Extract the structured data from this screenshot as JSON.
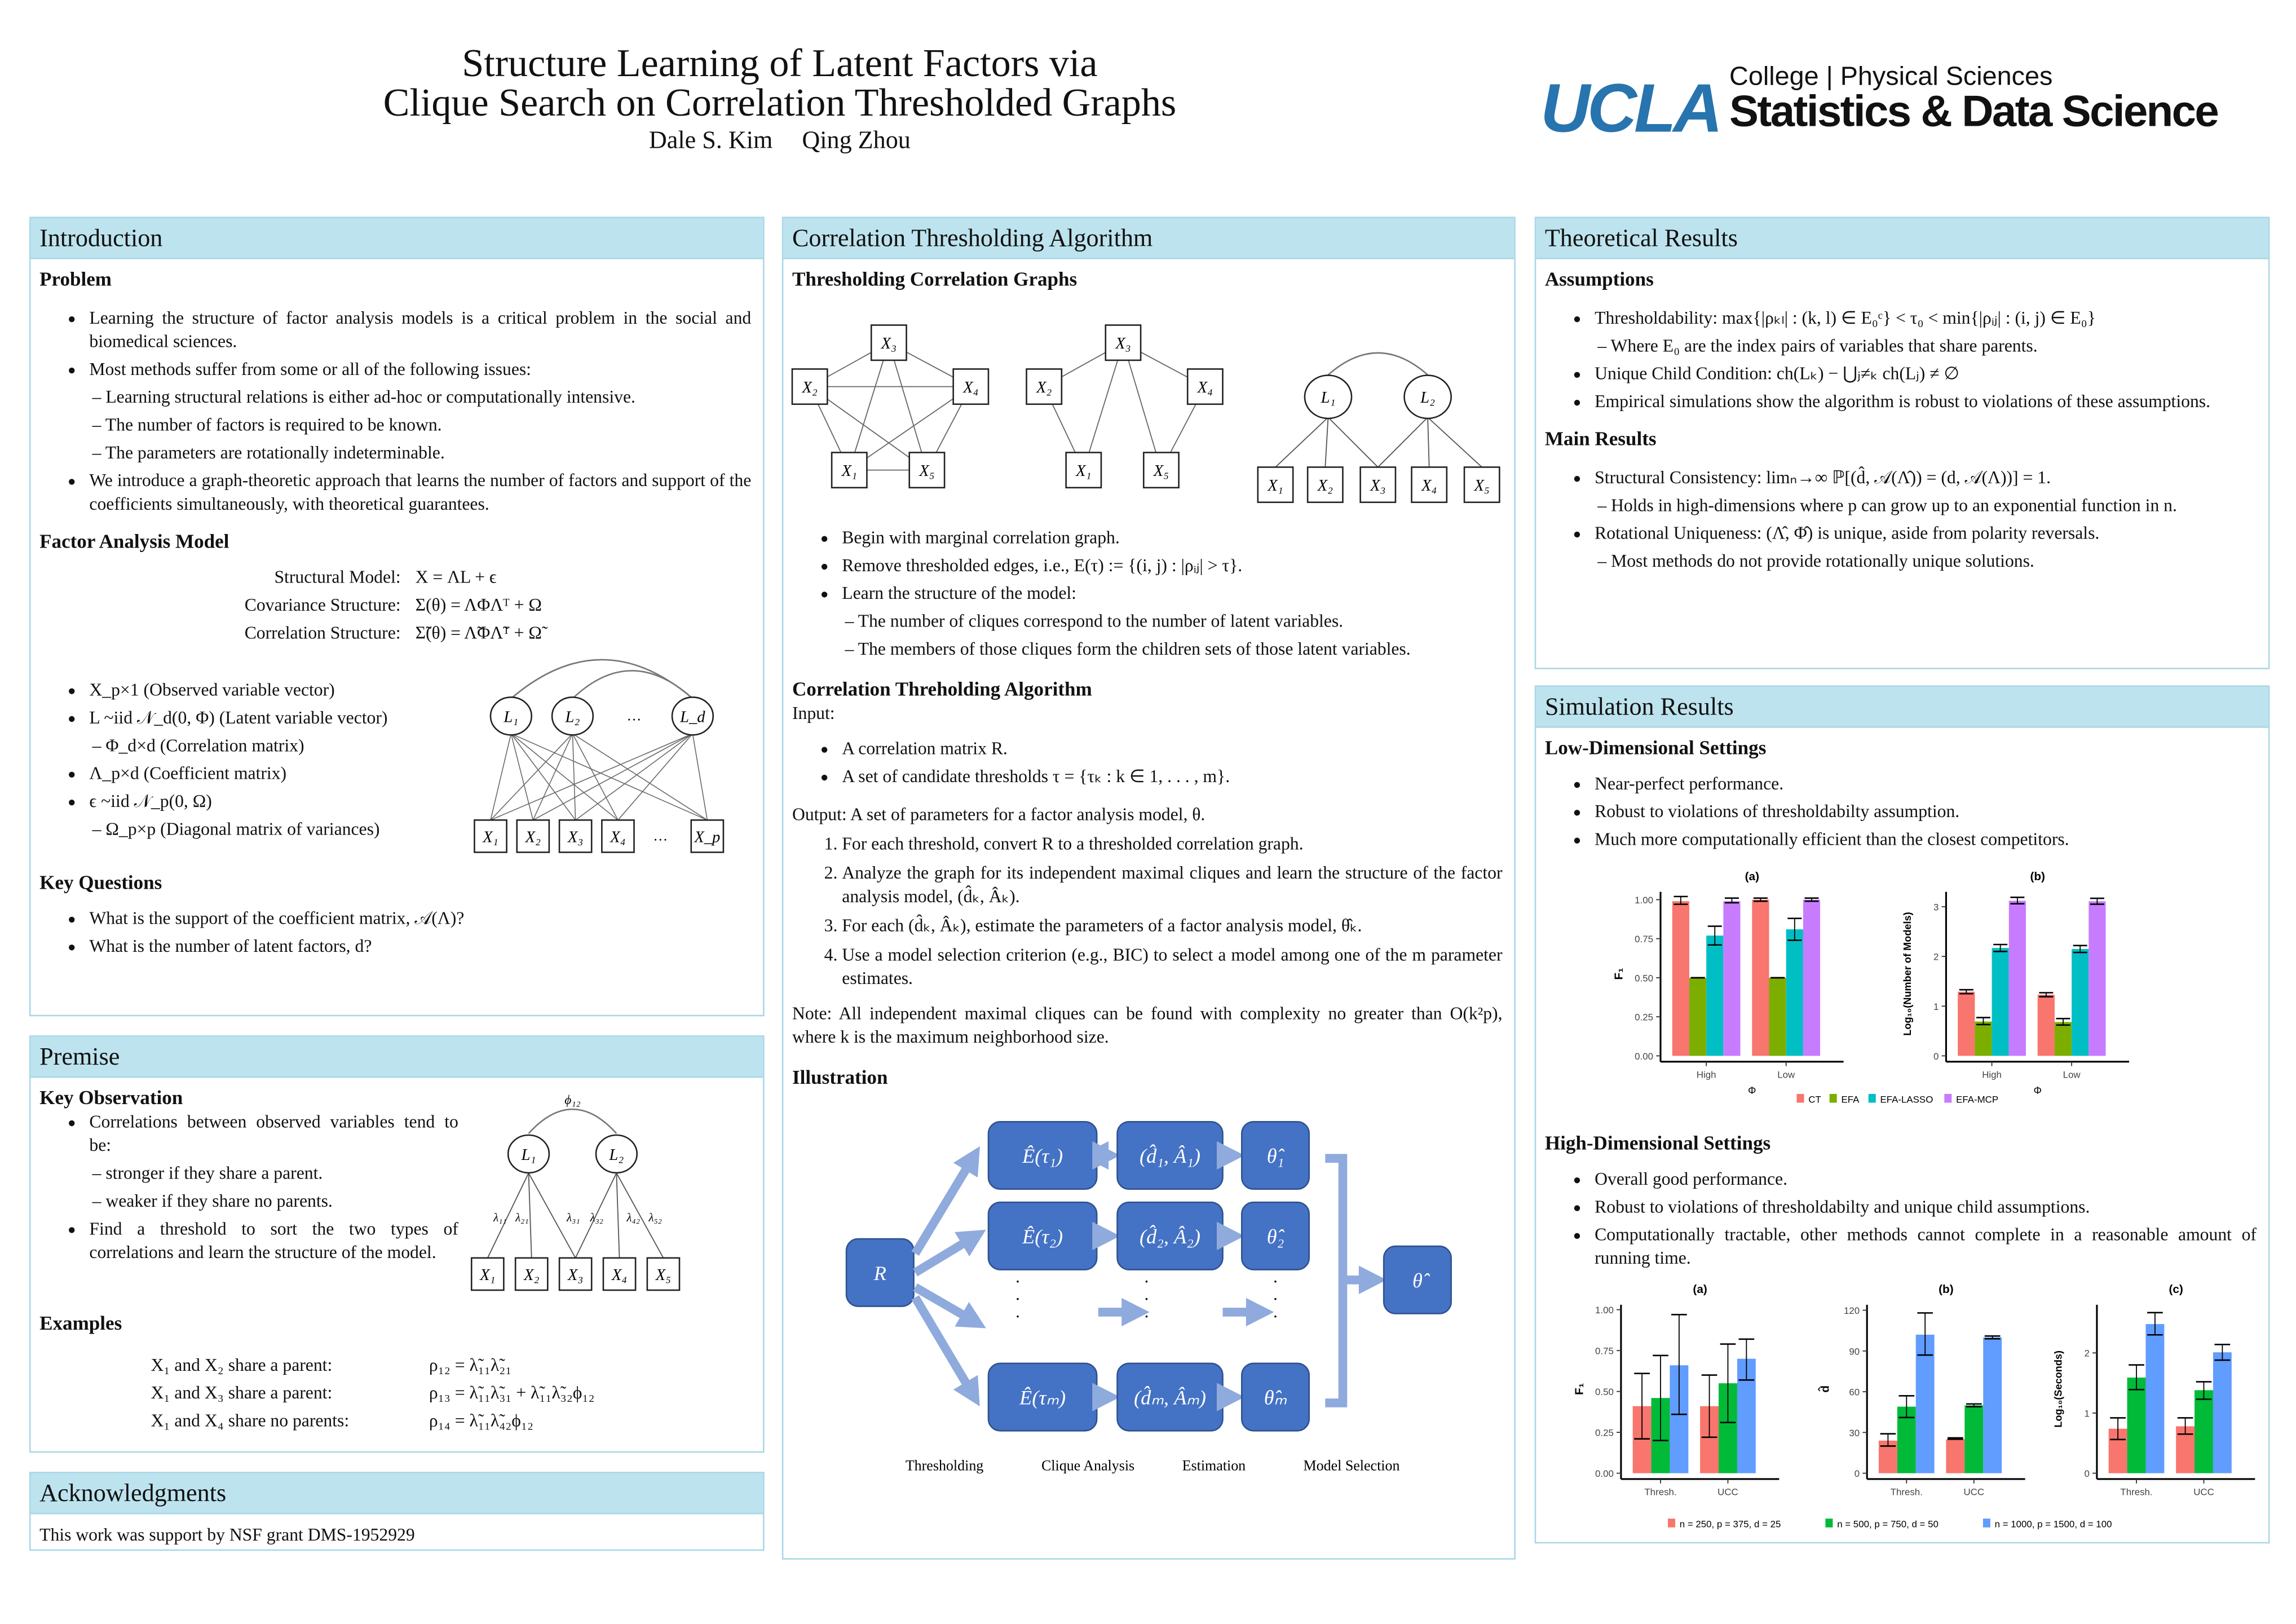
{
  "header": {
    "title_line1": "Structure Learning of Latent Factors via",
    "title_line2": "Clique Search on Correlation Thresholded Graphs",
    "authors": [
      "Dale S. Kim",
      "Qing Zhou"
    ],
    "logo": {
      "mark": "UCLA",
      "line1": "College | Physical Sciences",
      "line2": "Statistics & Data Science",
      "color": "#2774ae"
    }
  },
  "introduction": {
    "title": "Introduction",
    "problem_heading": "Problem",
    "problem": [
      {
        "text": "Learning the structure of factor analysis models is a critical problem in the social and biomedical sciences."
      },
      {
        "text": "Most methods suffer from some or all of the following issues:",
        "sub": [
          "Learning structural relations is either ad-hoc or computationally intensive.",
          "The number of factors is required to be known.",
          "The parameters are rotationally indeterminable."
        ]
      },
      {
        "text": "We introduce a graph-theoretic approach that learns the number of factors and support of the coefficients simultaneously, with theoretical guarantees."
      }
    ],
    "fam_heading": "Factor Analysis Model",
    "equations": [
      [
        "Structural Model:",
        "X = ΛL + ϵ"
      ],
      [
        "Covariance Structure:",
        "Σ(θ) = ΛΦΛᵀ + Ω"
      ],
      [
        "Correlation Structure:",
        "Σ̃(θ) = Λ̃ΦΛ̃ᵀ + Ω̃"
      ]
    ],
    "fam_list": [
      {
        "text": "X_p×1 (Observed variable vector)"
      },
      {
        "text": "L ~iid 𝒩_d(0, Φ) (Latent variable vector)",
        "sub": [
          "Φ_d×d (Correlation matrix)"
        ]
      },
      {
        "text": "Λ_p×d (Coefficient matrix)"
      },
      {
        "text": "ϵ ~iid 𝒩_p(0, Ω)",
        "sub": [
          "Ω_p×p (Diagonal matrix of variances)"
        ]
      }
    ],
    "diagram": {
      "latents": [
        "L₁",
        "L₂",
        "…",
        "L_d"
      ],
      "observed": [
        "X₁",
        "X₂",
        "X₃",
        "X₄",
        "…",
        "X_p"
      ]
    },
    "kq_heading": "Key Questions",
    "kq": [
      {
        "text": "What is the support of the coefficient matrix, 𝒜(Λ)?"
      },
      {
        "text": "What is the number of latent factors, d?"
      }
    ]
  },
  "premise": {
    "title": "Premise",
    "ko_heading": "Key Observation",
    "ko": [
      {
        "text": "Correlations between observed variables tend to be:",
        "sub": [
          "stronger if they share a parent.",
          "weaker if they share no parents."
        ]
      },
      {
        "text": "Find a threshold to sort the two types of correlations and learn the structure of the model."
      }
    ],
    "diagram": {
      "phi": "ϕ₁₂",
      "latents": [
        "L₁",
        "L₂"
      ],
      "observed": [
        "X₁",
        "X₂",
        "X₃",
        "X₄",
        "X₅"
      ],
      "loadings": [
        "λ₁₁",
        "λ₂₁",
        "λ₃₁",
        "λ₃₂",
        "λ₄₂",
        "λ₅₂"
      ]
    },
    "ex_heading": "Examples",
    "examples": [
      [
        "X₁ and X₂ share a parent:",
        "ρ₁₂ = λ̃₁₁λ̃₂₁"
      ],
      [
        "X₁ and X₃ share a parent:",
        "ρ₁₃ = λ̃₁₁λ̃₃₁ + λ̃₁₁λ̃₃₂ϕ₁₂"
      ],
      [
        "X₁ and X₄ share no parents:",
        "ρ₁₄ = λ̃₁₁λ̃₄₂ϕ₁₂"
      ]
    ]
  },
  "acknowledgments": {
    "title": "Acknowledgments",
    "text": "This work was support by NSF grant DMS-1952929"
  },
  "cta": {
    "title": "Correlation Thresholding Algorithm",
    "tcg_heading": "Thresholding Correlation Graphs",
    "graphs": {
      "nodes": [
        "X₁",
        "X₂",
        "X₃",
        "X₄",
        "X₅"
      ],
      "latents": [
        "L₁",
        "L₂"
      ]
    },
    "tcg": [
      {
        "text": "Begin with marginal correlation graph."
      },
      {
        "text": "Remove thresholded edges, i.e., E(τ) := {(i, j) : |ρᵢⱼ| > τ}."
      },
      {
        "text": "Learn the structure of the model:",
        "sub": [
          "The number of cliques correspond to the number of latent variables.",
          "The members of those cliques form the children sets of those latent variables."
        ]
      }
    ],
    "alg_heading": "Correlation Threholding Algorithm",
    "input_label": "Input:",
    "inputs": [
      {
        "text": "A correlation matrix R."
      },
      {
        "text": "A set of candidate thresholds τ = {τₖ : k ∈ 1, . . . , m}."
      }
    ],
    "output": "Output: A set of parameters for a factor analysis model, θ.",
    "steps": [
      "For each threshold, convert R to a thresholded correlation graph.",
      "Analyze the graph for its independent maximal cliques and learn the structure of the factor analysis model, (d̂ₖ, Âₖ).",
      "For each (d̂ₖ, Âₖ), estimate the parameters of a factor analysis model, θ̂ₖ.",
      "Use a model selection criterion (e.g., BIC) to select a model among one of the m parameter estimates."
    ],
    "note": "Note: All independent maximal cliques can be found with complexity no greater than O(k²p), where k is the maximum neighborhood size.",
    "ill_heading": "Illustration",
    "flow": {
      "input": "R",
      "graphs": [
        "Ê(τ₁)",
        "Ê(τ₂)",
        "Ê(τₘ)"
      ],
      "cliques": [
        "(d̂₁, Â₁)",
        "(d̂₂, Â₂)",
        "(d̂ₘ, Âₘ)"
      ],
      "estimates": [
        "θ̂₁",
        "θ̂₂",
        "θ̂ₘ"
      ],
      "output": "θ̂",
      "dots": "·\n·\n·",
      "color": "#4472c4",
      "arrow_color": "#8faadc"
    },
    "stages": [
      "Thresholding",
      "Clique Analysis",
      "Estimation",
      "Model Selection"
    ]
  },
  "theory": {
    "title": "Theoretical Results",
    "assump_heading": "Assumptions",
    "assumptions": [
      {
        "text": "Thresholdability: max{|ρₖₗ| : (k, l) ∈ E₀ᶜ} < τ₀ < min{|ρᵢⱼ| : (i, j) ∈ E₀}",
        "sub": [
          "Where E₀ are the index pairs of variables that share parents."
        ]
      },
      {
        "text": "Unique Child Condition: ch(Lₖ) − ⋃ⱼ≠ₖ ch(Lⱼ) ≠ ∅"
      },
      {
        "text": "Empirical simulations show the algorithm is robust to violations of these assumptions."
      }
    ],
    "main_heading": "Main Results",
    "main": [
      {
        "text": "Structural Consistency: limₙ→∞ ℙ[(d̂, 𝒜(Λ̂)) = (d, 𝒜(Λ))] = 1.",
        "sub": [
          "Holds in high-dimensions where p can grow up to an exponential function in n."
        ]
      },
      {
        "text": "Rotational Uniqueness: (Λ̂, Φ̂) is unique, aside from polarity reversals.",
        "sub": [
          "Most methods do not provide rotationally unique solutions."
        ]
      }
    ]
  },
  "simulation": {
    "title": "Simulation Results",
    "low_heading": "Low-Dimensional Settings",
    "low": [
      {
        "text": "Near-perfect performance."
      },
      {
        "text": "Robust to violations of thresholdabilty assumption."
      },
      {
        "text": "Much more computationally efficient than the closest competitors."
      }
    ],
    "high_heading": "High-Dimensional Settings",
    "high": [
      {
        "text": "Overall good performance."
      },
      {
        "text": "Robust to violations of thresholdabilty and unique child assumptions."
      },
      {
        "text": "Computationally tractable, other methods cannot complete in a reasonable amount of running time."
      }
    ]
  },
  "chart_data": [
    {
      "type": "bar",
      "title": "(a)",
      "xlabel": "Φ",
      "ylabel": "F₁",
      "categories": [
        "High",
        "Low"
      ],
      "ylim": [
        0,
        1.05
      ],
      "yticks": [
        "0.00",
        "0.25",
        "0.50",
        "0.75",
        "1.00"
      ],
      "grid": false,
      "legend": "bottom",
      "series": [
        {
          "name": "CT",
          "color": "#f8766d",
          "values": [
            0.99,
            1.0
          ],
          "err": [
            [
              0.97,
              1.02
            ],
            [
              0.99,
              1.01
            ]
          ]
        },
        {
          "name": "EFA",
          "color": "#7cae00",
          "values": [
            0.5,
            0.5
          ],
          "err": [
            [
              0.5,
              0.5
            ],
            [
              0.5,
              0.5
            ]
          ]
        },
        {
          "name": "EFA-LASSO",
          "color": "#00bfc4",
          "values": [
            0.77,
            0.81
          ],
          "err": [
            [
              0.71,
              0.83
            ],
            [
              0.74,
              0.88
            ]
          ]
        },
        {
          "name": "EFA-MCP",
          "color": "#c77cff",
          "values": [
            0.99,
            1.0
          ],
          "err": [
            [
              0.98,
              1.01
            ],
            [
              0.99,
              1.01
            ]
          ]
        }
      ]
    },
    {
      "type": "bar",
      "title": "(b)",
      "xlabel": "Φ",
      "ylabel": "Log₁₀(Number of Models)",
      "categories": [
        "High",
        "Low"
      ],
      "ylim": [
        0,
        3.3
      ],
      "yticks": [
        "0",
        "1",
        "2",
        "3"
      ],
      "grid": false,
      "legend": "bottom",
      "series": [
        {
          "name": "CT",
          "color": "#f8766d",
          "values": [
            1.29,
            1.23
          ],
          "err": [
            [
              1.25,
              1.33
            ],
            [
              1.19,
              1.27
            ]
          ]
        },
        {
          "name": "EFA",
          "color": "#7cae00",
          "values": [
            0.69,
            0.68
          ],
          "err": [
            [
              0.63,
              0.77
            ],
            [
              0.62,
              0.75
            ]
          ]
        },
        {
          "name": "EFA-LASSO",
          "color": "#00bfc4",
          "values": [
            2.17,
            2.15
          ],
          "err": [
            [
              2.1,
              2.24
            ],
            [
              2.08,
              2.22
            ]
          ]
        },
        {
          "name": "EFA-MCP",
          "color": "#c77cff",
          "values": [
            3.12,
            3.11
          ],
          "err": [
            [
              3.06,
              3.19
            ],
            [
              3.05,
              3.17
            ]
          ]
        }
      ]
    },
    {
      "type": "bar",
      "title": "(a)",
      "xlabel": "",
      "ylabel": "F₁",
      "categories": [
        "Thresh.",
        "UCC"
      ],
      "ylim": [
        0,
        1.03
      ],
      "yticks": [
        "0.00",
        "0.25",
        "0.50",
        "0.75",
        "1.00"
      ],
      "grid": false,
      "legend": "bottom",
      "series": [
        {
          "name": "n = 250, p = 375, d = 25",
          "color": "#f8766d",
          "values": [
            0.41,
            0.41
          ],
          "err": [
            [
              0.21,
              0.61
            ],
            [
              0.22,
              0.6
            ]
          ]
        },
        {
          "name": "n = 500, p = 750, d = 50",
          "color": "#00ba38",
          "values": [
            0.46,
            0.55
          ],
          "err": [
            [
              0.2,
              0.72
            ],
            [
              0.31,
              0.79
            ]
          ]
        },
        {
          "name": "n = 1000, p = 1500, d = 100",
          "color": "#619cff",
          "values": [
            0.66,
            0.7
          ],
          "err": [
            [
              0.36,
              0.97
            ],
            [
              0.57,
              0.82
            ]
          ]
        }
      ]
    },
    {
      "type": "bar",
      "title": "(b)",
      "xlabel": "",
      "ylabel": "d̂",
      "categories": [
        "Thresh.",
        "UCC"
      ],
      "ylim": [
        0,
        124
      ],
      "yticks": [
        "0",
        "30",
        "60",
        "90",
        "120"
      ],
      "grid": false,
      "legend": "bottom",
      "series": [
        {
          "name": "n = 250, p = 375, d = 25",
          "color": "#f8766d",
          "values": [
            24,
            25
          ],
          "err": [
            [
              20,
              29
            ],
            [
              25,
              26
            ]
          ]
        },
        {
          "name": "n = 500, p = 750, d = 50",
          "color": "#00ba38",
          "values": [
            49,
            50
          ],
          "err": [
            [
              41,
              57
            ],
            [
              49,
              51
            ]
          ]
        },
        {
          "name": "n = 1000, p = 1500, d = 100",
          "color": "#619cff",
          "values": [
            102,
            100
          ],
          "err": [
            [
              87,
              118
            ],
            [
              99,
              101
            ]
          ]
        }
      ]
    },
    {
      "type": "bar",
      "title": "(c)",
      "xlabel": "",
      "ylabel": "Log₁₀(Seconds)",
      "categories": [
        "Thresh.",
        "UCC"
      ],
      "ylim": [
        0,
        2.8
      ],
      "yticks": [
        "0",
        "1",
        "2"
      ],
      "grid": false,
      "legend": "bottom",
      "series": [
        {
          "name": "n = 250, p = 375, d = 25",
          "color": "#f8766d",
          "values": [
            0.74,
            0.78
          ],
          "err": [
            [
              0.56,
              0.92
            ],
            [
              0.65,
              0.92
            ]
          ]
        },
        {
          "name": "n = 500, p = 750, d = 50",
          "color": "#00ba38",
          "values": [
            1.59,
            1.38
          ],
          "err": [
            [
              1.39,
              1.8
            ],
            [
              1.23,
              1.52
            ]
          ]
        },
        {
          "name": "n = 1000, p = 1500, d = 100",
          "color": "#619cff",
          "values": [
            2.48,
            2.01
          ],
          "err": [
            [
              2.3,
              2.67
            ],
            [
              1.88,
              2.14
            ]
          ]
        }
      ]
    }
  ]
}
